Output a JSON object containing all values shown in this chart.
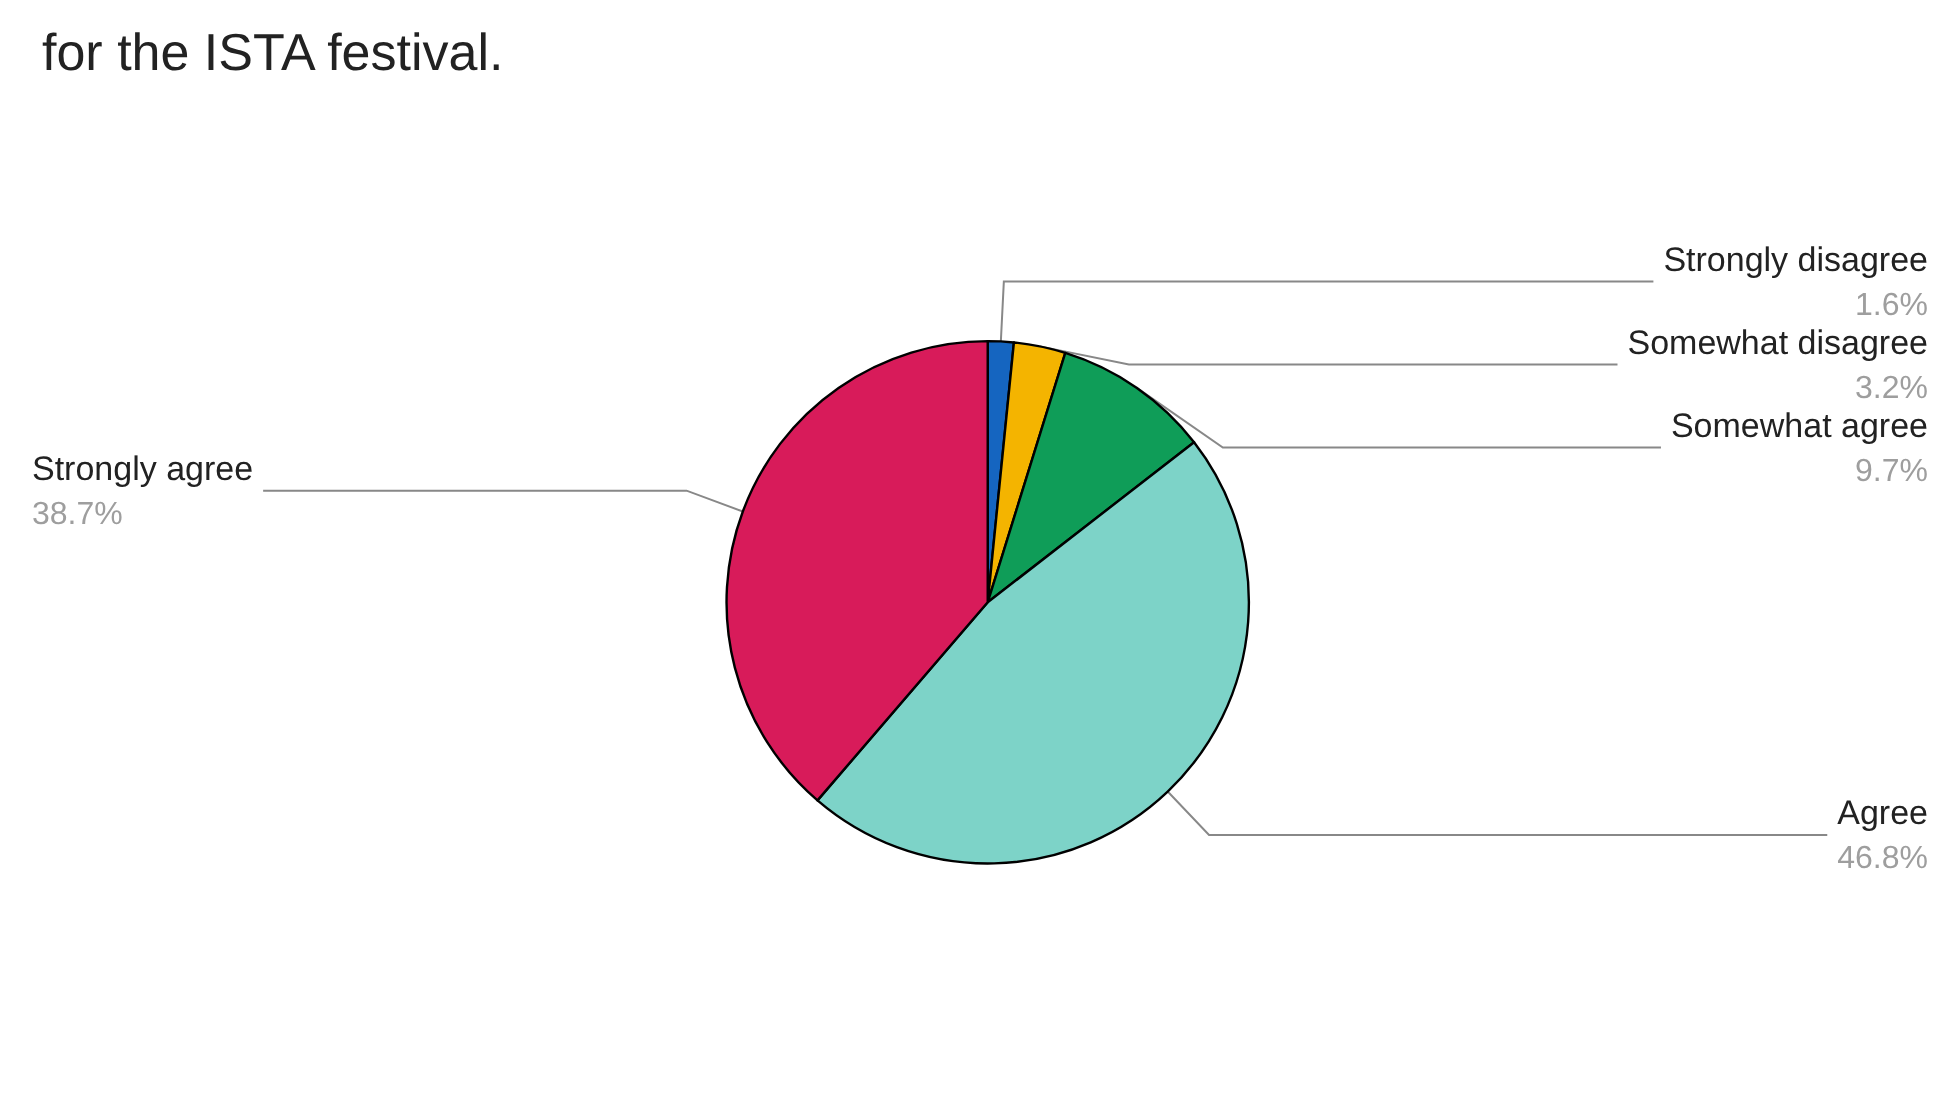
{
  "chart_data": {
    "type": "pie",
    "title": "for the ISTA festival.",
    "categories": [
      "Strongly disagree",
      "Somewhat disagree",
      "Somewhat agree",
      "Agree",
      "Strongly agree"
    ],
    "values": [
      1.6,
      3.2,
      9.7,
      46.8,
      38.7
    ],
    "value_labels": [
      "1.6%",
      "3.2%",
      "9.7%",
      "46.8%",
      "38.7%"
    ],
    "colors": [
      "#1565c0",
      "#f4b400",
      "#0f9d58",
      "#7dd3c8",
      "#d81b5a"
    ],
    "legend": false
  }
}
